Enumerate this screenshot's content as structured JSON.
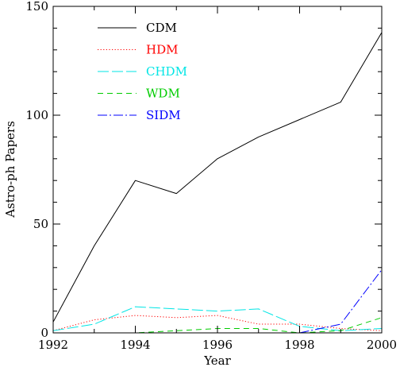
{
  "chart_data": {
    "type": "line",
    "xlabel": "Year",
    "ylabel": "Astro-ph Papers",
    "xlim": [
      1992,
      2000
    ],
    "ylim": [
      0,
      150
    ],
    "xticks": [
      1992,
      1994,
      1996,
      1998,
      2000
    ],
    "yticks": [
      0,
      50,
      100,
      150
    ],
    "xtick_labels": [
      "1992",
      "1994",
      "1996",
      "1998",
      "2000"
    ],
    "ytick_labels": [
      "0",
      "50",
      "100",
      "150"
    ],
    "grid": false,
    "legend_position": "top-left",
    "series": [
      {
        "name": "CDM",
        "color": "#000000",
        "style": "solid",
        "x": [
          1992,
          1993,
          1994,
          1995,
          1996,
          1997,
          1998,
          1999,
          2000
        ],
        "y": [
          5,
          40,
          70,
          64,
          80,
          90,
          98,
          106,
          138
        ]
      },
      {
        "name": "HDM",
        "color": "#ff0000",
        "style": "dotted",
        "x": [
          1992,
          1993,
          1994,
          1995,
          1996,
          1997,
          1998,
          1999,
          2000
        ],
        "y": [
          1,
          6,
          8,
          7,
          8,
          4,
          4,
          2,
          1
        ]
      },
      {
        "name": "CHDM",
        "color": "#00e5e5",
        "style": "long-dash",
        "x": [
          1992,
          1993,
          1994,
          1995,
          1996,
          1997,
          1998,
          1999,
          2000
        ],
        "y": [
          1,
          4,
          12,
          11,
          10,
          11,
          3,
          1,
          2
        ]
      },
      {
        "name": "WDM",
        "color": "#00cc00",
        "style": "dashed",
        "x": [
          1992,
          1993,
          1994,
          1995,
          1996,
          1997,
          1998,
          1999,
          2000
        ],
        "y": [
          0,
          0,
          0,
          1,
          2,
          2,
          0,
          1,
          7
        ]
      },
      {
        "name": "SIDM",
        "color": "#0000ff",
        "style": "dash-dot",
        "x": [
          1998,
          1999,
          2000
        ],
        "y": [
          0,
          4,
          29
        ]
      }
    ]
  }
}
